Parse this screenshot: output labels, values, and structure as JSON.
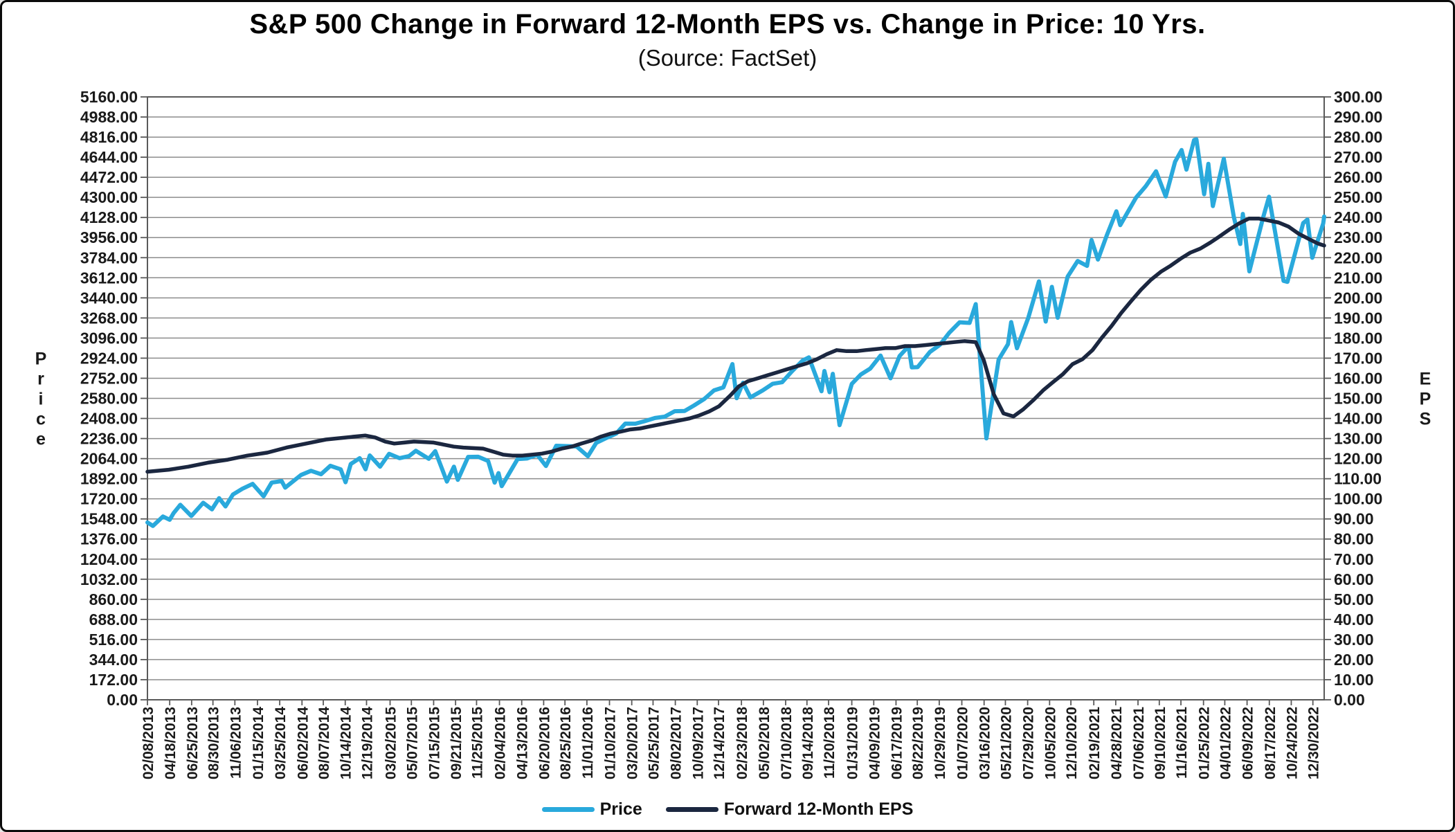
{
  "title": "S&P 500 Change in Forward 12-Month EPS vs. Change in Price: 10 Yrs.",
  "subtitle": "(Source: FactSet)",
  "chart_data": {
    "type": "line",
    "title": "S&P 500 Change in Forward 12-Month EPS vs. Change in Price: 10 Yrs.",
    "subtitle": "(Source: FactSet)",
    "grid": true,
    "legend_position": "bottom",
    "colors": {
      "price": "#29A9DC",
      "eps": "#1B2740",
      "gridline": "#8c8c8c",
      "axis": "#595959"
    },
    "y_left": {
      "title": "Price",
      "min": 0,
      "max": 5160,
      "step": 172,
      "decimals": 2
    },
    "y_right": {
      "title": "EPS",
      "min": 0,
      "max": 300,
      "step": 10,
      "decimals": 2
    },
    "x_range": {
      "start": "2013-02-08",
      "end": "2023-02-03"
    },
    "x_tick_labels": [
      "02/08/2013",
      "04/18/2013",
      "06/25/2013",
      "08/30/2013",
      "11/06/2013",
      "01/15/2014",
      "03/25/2014",
      "06/02/2014",
      "08/07/2014",
      "10/14/2014",
      "12/19/2014",
      "03/02/2015",
      "05/07/2015",
      "07/15/2015",
      "09/21/2015",
      "11/25/2015",
      "02/04/2016",
      "04/13/2016",
      "06/20/2016",
      "08/25/2016",
      "11/01/2016",
      "01/10/2017",
      "03/20/2017",
      "05/25/2017",
      "08/02/2017",
      "10/09/2017",
      "12/14/2017",
      "02/23/2018",
      "05/02/2018",
      "07/10/2018",
      "09/14/2018",
      "11/20/2018",
      "01/31/2019",
      "04/09/2019",
      "06/17/2019",
      "08/22/2019",
      "10/29/2019",
      "01/07/2020",
      "03/16/2020",
      "05/21/2020",
      "07/29/2020",
      "10/05/2020",
      "12/10/2020",
      "02/19/2021",
      "04/28/2021",
      "07/06/2021",
      "09/10/2021",
      "11/16/2021",
      "01/25/2022",
      "04/01/2022",
      "06/09/2022",
      "08/17/2022",
      "10/24/2022",
      "12/30/2022"
    ],
    "series": [
      {
        "name": "Price",
        "axis": "left",
        "color": "#29A9DC",
        "stroke_width": 6,
        "points": [
          [
            "2013-02-08",
            1518
          ],
          [
            "2013-02-25",
            1488
          ],
          [
            "2013-03-28",
            1569
          ],
          [
            "2013-04-18",
            1541
          ],
          [
            "2013-04-30",
            1598
          ],
          [
            "2013-05-21",
            1669
          ],
          [
            "2013-06-24",
            1573
          ],
          [
            "2013-07-31",
            1686
          ],
          [
            "2013-08-27",
            1630
          ],
          [
            "2013-09-18",
            1726
          ],
          [
            "2013-10-08",
            1655
          ],
          [
            "2013-10-31",
            1757
          ],
          [
            "2013-11-29",
            1806
          ],
          [
            "2013-12-31",
            1848
          ],
          [
            "2014-02-03",
            1742
          ],
          [
            "2014-02-28",
            1859
          ],
          [
            "2014-03-31",
            1872
          ],
          [
            "2014-04-11",
            1816
          ],
          [
            "2014-05-30",
            1924
          ],
          [
            "2014-06-30",
            1960
          ],
          [
            "2014-07-31",
            1931
          ],
          [
            "2014-08-29",
            2003
          ],
          [
            "2014-09-30",
            1972
          ],
          [
            "2014-10-15",
            1862
          ],
          [
            "2014-10-31",
            2018
          ],
          [
            "2014-11-28",
            2068
          ],
          [
            "2014-12-16",
            1973
          ],
          [
            "2014-12-29",
            2091
          ],
          [
            "2015-01-30",
            1995
          ],
          [
            "2015-02-27",
            2105
          ],
          [
            "2015-03-31",
            2068
          ],
          [
            "2015-04-30",
            2086
          ],
          [
            "2015-05-21",
            2131
          ],
          [
            "2015-06-30",
            2063
          ],
          [
            "2015-07-20",
            2128
          ],
          [
            "2015-08-25",
            1868
          ],
          [
            "2015-09-16",
            1995
          ],
          [
            "2015-09-28",
            1882
          ],
          [
            "2015-10-30",
            2079
          ],
          [
            "2015-11-30",
            2080
          ],
          [
            "2015-12-31",
            2044
          ],
          [
            "2016-01-20",
            1859
          ],
          [
            "2016-02-01",
            1940
          ],
          [
            "2016-02-11",
            1829
          ],
          [
            "2016-03-31",
            2060
          ],
          [
            "2016-04-29",
            2065
          ],
          [
            "2016-05-31",
            2097
          ],
          [
            "2016-06-27",
            2001
          ],
          [
            "2016-07-29",
            2174
          ],
          [
            "2016-08-31",
            2171
          ],
          [
            "2016-09-30",
            2168
          ],
          [
            "2016-11-04",
            2085
          ],
          [
            "2016-11-30",
            2199
          ],
          [
            "2016-12-30",
            2239
          ],
          [
            "2017-01-31",
            2279
          ],
          [
            "2017-02-28",
            2364
          ],
          [
            "2017-03-31",
            2363
          ],
          [
            "2017-04-28",
            2384
          ],
          [
            "2017-05-31",
            2412
          ],
          [
            "2017-06-30",
            2423
          ],
          [
            "2017-07-31",
            2470
          ],
          [
            "2017-08-31",
            2472
          ],
          [
            "2017-09-29",
            2519
          ],
          [
            "2017-10-31",
            2575
          ],
          [
            "2017-11-30",
            2648
          ],
          [
            "2017-12-29",
            2674
          ],
          [
            "2018-01-26",
            2873
          ],
          [
            "2018-02-08",
            2581
          ],
          [
            "2018-02-28",
            2714
          ],
          [
            "2018-03-23",
            2588
          ],
          [
            "2018-04-30",
            2648
          ],
          [
            "2018-05-31",
            2705
          ],
          [
            "2018-06-29",
            2718
          ],
          [
            "2018-07-31",
            2816
          ],
          [
            "2018-08-31",
            2902
          ],
          [
            "2018-09-20",
            2931
          ],
          [
            "2018-10-29",
            2641
          ],
          [
            "2018-11-07",
            2814
          ],
          [
            "2018-11-23",
            2633
          ],
          [
            "2018-12-03",
            2790
          ],
          [
            "2018-12-24",
            2351
          ],
          [
            "2019-01-31",
            2704
          ],
          [
            "2019-02-28",
            2784
          ],
          [
            "2019-03-29",
            2834
          ],
          [
            "2019-04-30",
            2946
          ],
          [
            "2019-05-31",
            2752
          ],
          [
            "2019-06-28",
            2942
          ],
          [
            "2019-07-26",
            3026
          ],
          [
            "2019-08-05",
            2845
          ],
          [
            "2019-08-23",
            2847
          ],
          [
            "2019-09-30",
            2977
          ],
          [
            "2019-10-31",
            3038
          ],
          [
            "2019-11-29",
            3141
          ],
          [
            "2019-12-31",
            3231
          ],
          [
            "2020-01-31",
            3226
          ],
          [
            "2020-02-19",
            3386
          ],
          [
            "2020-03-23",
            2237
          ],
          [
            "2020-04-30",
            2912
          ],
          [
            "2020-05-29",
            3044
          ],
          [
            "2020-06-08",
            3232
          ],
          [
            "2020-06-26",
            3009
          ],
          [
            "2020-07-31",
            3271
          ],
          [
            "2020-09-02",
            3581
          ],
          [
            "2020-09-23",
            3237
          ],
          [
            "2020-10-12",
            3534
          ],
          [
            "2020-10-30",
            3270
          ],
          [
            "2020-11-30",
            3622
          ],
          [
            "2020-12-31",
            3756
          ],
          [
            "2021-01-29",
            3714
          ],
          [
            "2021-02-12",
            3935
          ],
          [
            "2021-03-04",
            3768
          ],
          [
            "2021-03-31",
            3973
          ],
          [
            "2021-04-30",
            4181
          ],
          [
            "2021-05-12",
            4063
          ],
          [
            "2021-06-30",
            4298
          ],
          [
            "2021-07-30",
            4395
          ],
          [
            "2021-08-31",
            4523
          ],
          [
            "2021-09-30",
            4308
          ],
          [
            "2021-10-29",
            4605
          ],
          [
            "2021-11-18",
            4705
          ],
          [
            "2021-12-03",
            4538
          ],
          [
            "2021-12-27",
            4791
          ],
          [
            "2022-01-03",
            4797
          ],
          [
            "2022-01-27",
            4327
          ],
          [
            "2022-02-09",
            4587
          ],
          [
            "2022-02-23",
            4226
          ],
          [
            "2022-03-29",
            4631
          ],
          [
            "2022-04-29",
            4132
          ],
          [
            "2022-05-19",
            3901
          ],
          [
            "2022-05-27",
            4158
          ],
          [
            "2022-06-16",
            3667
          ],
          [
            "2022-07-29",
            4130
          ],
          [
            "2022-08-16",
            4305
          ],
          [
            "2022-09-30",
            3586
          ],
          [
            "2022-10-12",
            3577
          ],
          [
            "2022-11-30",
            4080
          ],
          [
            "2022-12-13",
            4110
          ],
          [
            "2022-12-28",
            3783
          ],
          [
            "2023-01-31",
            4077
          ],
          [
            "2023-02-03",
            4136
          ]
        ]
      },
      {
        "name": "Forward 12-Month EPS",
        "axis": "right",
        "color": "#1B2740",
        "stroke_width": 5.5,
        "points": [
          [
            "2013-02-08",
            113.5
          ],
          [
            "2013-04-15",
            114.5
          ],
          [
            "2013-06-15",
            116
          ],
          [
            "2013-08-15",
            118
          ],
          [
            "2013-10-15",
            119.5
          ],
          [
            "2013-12-15",
            121.5
          ],
          [
            "2014-02-15",
            123
          ],
          [
            "2014-04-15",
            125.5
          ],
          [
            "2014-06-15",
            127.5
          ],
          [
            "2014-08-15",
            129.5
          ],
          [
            "2014-10-15",
            130.5
          ],
          [
            "2014-12-15",
            131.5
          ],
          [
            "2015-01-15",
            130.5
          ],
          [
            "2015-02-15",
            128.5
          ],
          [
            "2015-03-15",
            127.5
          ],
          [
            "2015-04-15",
            128
          ],
          [
            "2015-05-15",
            128.5
          ],
          [
            "2015-07-15",
            128
          ],
          [
            "2015-08-15",
            127
          ],
          [
            "2015-09-15",
            126
          ],
          [
            "2015-10-15",
            125.5
          ],
          [
            "2015-12-15",
            125
          ],
          [
            "2016-01-15",
            123.5
          ],
          [
            "2016-02-15",
            122
          ],
          [
            "2016-03-15",
            121.5
          ],
          [
            "2016-04-15",
            121.5
          ],
          [
            "2016-05-15",
            122
          ],
          [
            "2016-06-15",
            122.5
          ],
          [
            "2016-07-15",
            123.5
          ],
          [
            "2016-08-15",
            125
          ],
          [
            "2016-09-15",
            126
          ],
          [
            "2016-10-15",
            127.5
          ],
          [
            "2016-11-15",
            129
          ],
          [
            "2016-12-15",
            131
          ],
          [
            "2017-01-15",
            132.5
          ],
          [
            "2017-02-15",
            133.5
          ],
          [
            "2017-03-15",
            134.5
          ],
          [
            "2017-04-15",
            135
          ],
          [
            "2017-05-15",
            136
          ],
          [
            "2017-06-15",
            137
          ],
          [
            "2017-07-15",
            138
          ],
          [
            "2017-08-15",
            139
          ],
          [
            "2017-09-15",
            140
          ],
          [
            "2017-10-15",
            141.5
          ],
          [
            "2017-11-15",
            143.5
          ],
          [
            "2017-12-15",
            146
          ],
          [
            "2018-01-20",
            151.5
          ],
          [
            "2018-02-15",
            156
          ],
          [
            "2018-03-15",
            158.5
          ],
          [
            "2018-04-15",
            160
          ],
          [
            "2018-05-15",
            161.5
          ],
          [
            "2018-06-15",
            163
          ],
          [
            "2018-07-15",
            164.5
          ],
          [
            "2018-08-15",
            166
          ],
          [
            "2018-09-15",
            167.5
          ],
          [
            "2018-10-15",
            169.5
          ],
          [
            "2018-11-15",
            172
          ],
          [
            "2018-12-15",
            174
          ],
          [
            "2019-01-15",
            173.5
          ],
          [
            "2019-02-15",
            173.5
          ],
          [
            "2019-03-15",
            174
          ],
          [
            "2019-04-15",
            174.5
          ],
          [
            "2019-05-15",
            175
          ],
          [
            "2019-06-15",
            175
          ],
          [
            "2019-07-15",
            176
          ],
          [
            "2019-08-15",
            176
          ],
          [
            "2019-09-15",
            176.5
          ],
          [
            "2019-10-15",
            177
          ],
          [
            "2019-11-15",
            177.5
          ],
          [
            "2019-12-15",
            178
          ],
          [
            "2020-01-15",
            178.5
          ],
          [
            "2020-02-19",
            178
          ],
          [
            "2020-03-15",
            169
          ],
          [
            "2020-04-15",
            152
          ],
          [
            "2020-05-15",
            142.5
          ],
          [
            "2020-06-15",
            141
          ],
          [
            "2020-07-15",
            144.5
          ],
          [
            "2020-08-15",
            149
          ],
          [
            "2020-09-15",
            154
          ],
          [
            "2020-10-15",
            158
          ],
          [
            "2020-11-15",
            162
          ],
          [
            "2020-12-15",
            167
          ],
          [
            "2021-01-15",
            169.5
          ],
          [
            "2021-02-15",
            174
          ],
          [
            "2021-03-15",
            180
          ],
          [
            "2021-04-15",
            186
          ],
          [
            "2021-05-15",
            192.5
          ],
          [
            "2021-06-15",
            198.5
          ],
          [
            "2021-07-15",
            204
          ],
          [
            "2021-08-15",
            209
          ],
          [
            "2021-09-15",
            213
          ],
          [
            "2021-10-15",
            216
          ],
          [
            "2021-11-15",
            219.5
          ],
          [
            "2021-12-15",
            222.5
          ],
          [
            "2022-01-15",
            224.5
          ],
          [
            "2022-02-15",
            227.5
          ],
          [
            "2022-03-15",
            230.5
          ],
          [
            "2022-04-15",
            234
          ],
          [
            "2022-05-15",
            237
          ],
          [
            "2022-06-15",
            239.5
          ],
          [
            "2022-07-15",
            239.5
          ],
          [
            "2022-08-15",
            238.5
          ],
          [
            "2022-09-15",
            237.5
          ],
          [
            "2022-10-15",
            235.5
          ],
          [
            "2022-11-15",
            232
          ],
          [
            "2022-12-15",
            229.5
          ],
          [
            "2023-01-15",
            227
          ],
          [
            "2023-02-03",
            226
          ]
        ]
      }
    ],
    "legend": [
      "Price",
      "Forward 12-Month EPS"
    ]
  }
}
